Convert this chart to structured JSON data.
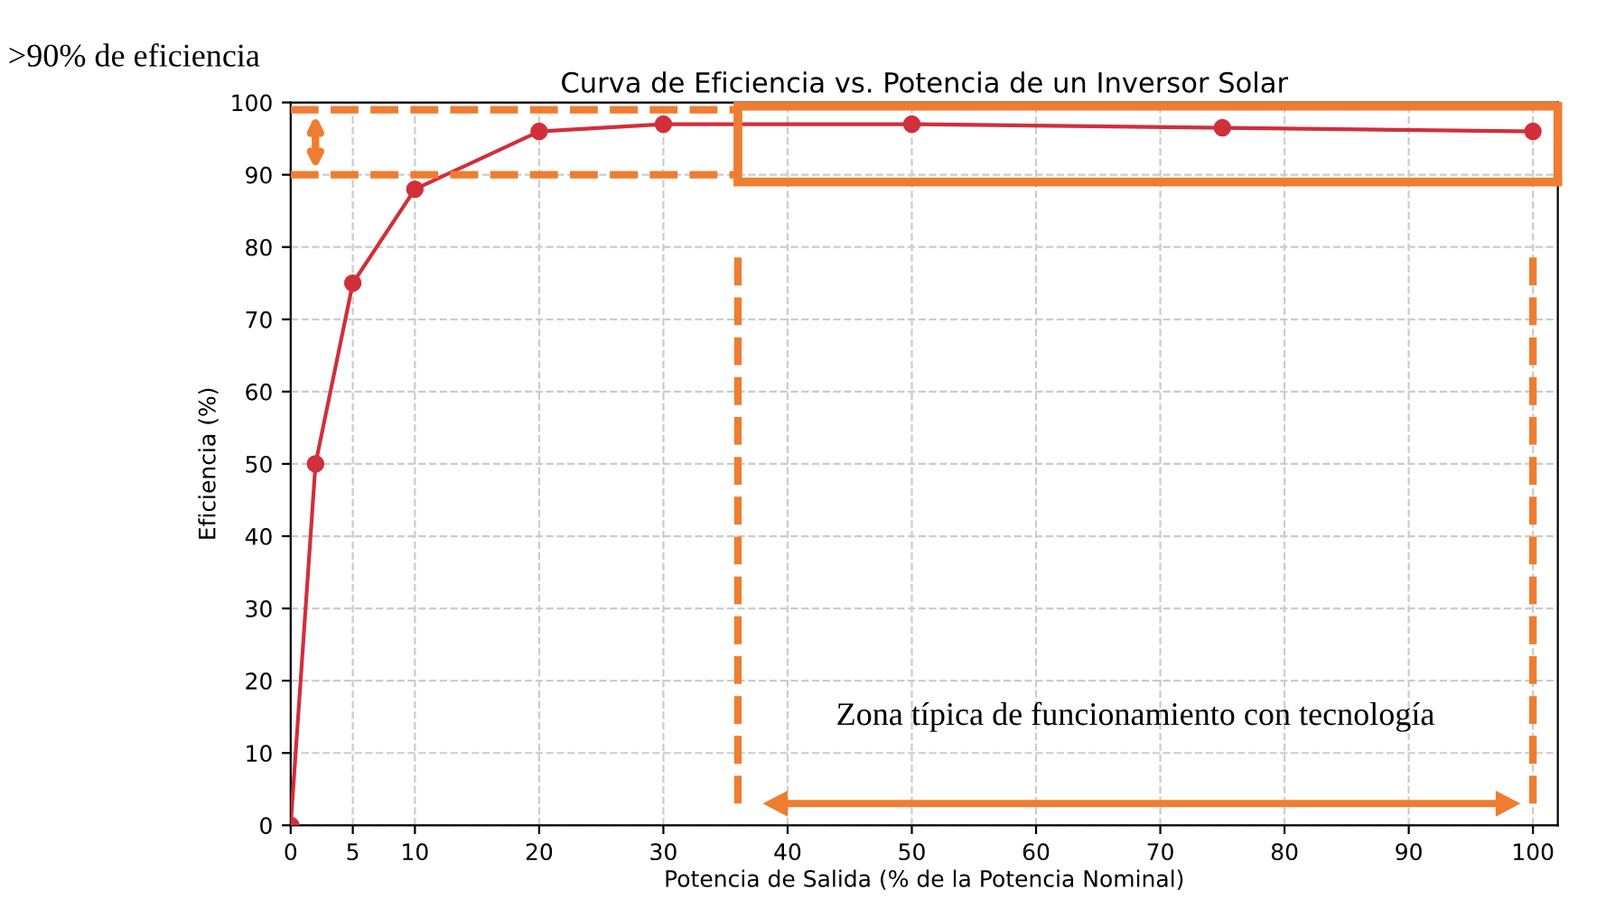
{
  "chart_data": {
    "type": "line",
    "title": "Curva de Eficiencia vs. Potencia de un Inversor Solar",
    "xlabel": "Potencia de Salida (% de la Potencia Nominal)",
    "ylabel": "Eficiencia (%)",
    "x": [
      0,
      2,
      5,
      10,
      20,
      30,
      50,
      75,
      100
    ],
    "series": [
      {
        "color": "#d12f3a",
        "values": [
          0,
          50,
          75,
          88,
          96,
          97,
          97,
          96.5,
          96
        ]
      }
    ],
    "marker": "circle",
    "line_style": "solid",
    "grid": true,
    "xlim": [
      0,
      102
    ],
    "xticks": [
      0,
      5,
      10,
      20,
      30,
      40,
      50,
      60,
      70,
      80,
      90,
      100
    ],
    "ylim": [
      0,
      100
    ],
    "yticks": [
      0,
      10,
      20,
      30,
      40,
      50,
      60,
      70,
      80,
      90,
      100
    ],
    "ref_lines": [
      {
        "axis": "y",
        "value": 90,
        "color": "#ee7d31",
        "line_style": "dashed"
      },
      {
        "axis": "y",
        "value": 99,
        "color": "#ee7d31",
        "line_style": "dashed"
      },
      {
        "axis": "x",
        "value": 36,
        "color": "#ee7d31",
        "line_style": "dashed"
      },
      {
        "axis": "x",
        "value": 100,
        "color": "#ee7d31",
        "line_style": "dashed"
      }
    ],
    "annotations": [
      ">90% de eficiencia",
      "Zona típica de funcionamiento con tecnología"
    ]
  }
}
